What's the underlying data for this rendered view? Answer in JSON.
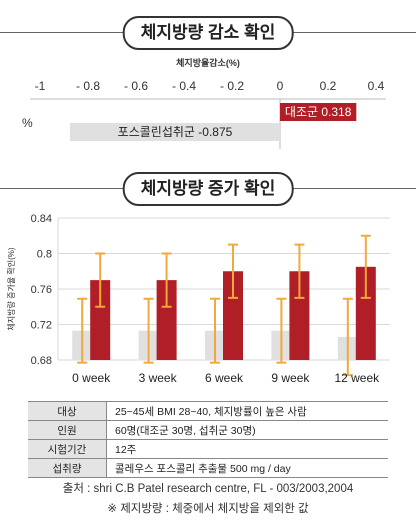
{
  "sections": {
    "title_1": "체지방량 감소 확인",
    "title_2": "체지방량 증가 확인"
  },
  "chart_data": [
    {
      "type": "bar",
      "orientation": "horizontal",
      "title": "체지방율감소(%)",
      "ylabel": "%",
      "xlim": [
        -1,
        0.4
      ],
      "xticks": [
        -1,
        -0.8,
        -0.6,
        -0.4,
        -0.2,
        0,
        0.2,
        0.4
      ],
      "xtick_labels": [
        "-1",
        "- 0.8",
        "- 0.6",
        "- 0.4",
        "- 0.2",
        "0",
        "0.2",
        "0.4"
      ],
      "bars": [
        {
          "label": "대조군 0.318",
          "value": 0.318,
          "color": "#b01e27"
        },
        {
          "label": "포스콜린섭취군 -0.875",
          "value": -0.875,
          "color": "#e0e0e0"
        }
      ]
    },
    {
      "type": "bar",
      "ylabel": "체지방량 증가율 확인(%)",
      "ylim": [
        0.68,
        0.84
      ],
      "yticks": [
        0.68,
        0.72,
        0.76,
        0.8,
        0.84
      ],
      "ytick_labels": [
        "0.68",
        "0.72",
        "0.76",
        "0.8",
        "0.84"
      ],
      "grid": true,
      "categories": [
        "0 week",
        "3 week",
        "6 week",
        "9 week",
        "12 week"
      ],
      "series": [
        {
          "values": [
            0.713,
            0.713,
            0.713,
            0.713,
            0.706
          ],
          "error": [
            0.036,
            0.036,
            0.036,
            0.036,
            0.043
          ],
          "color": "#e0e0e0"
        },
        {
          "values": [
            0.77,
            0.77,
            0.78,
            0.78,
            0.785
          ],
          "error": [
            0.03,
            0.03,
            0.03,
            0.03,
            0.035
          ],
          "color": "#b01e27"
        }
      ],
      "error_bar_color": "#f2a93b"
    }
  ],
  "info_table": [
    {
      "label": "대상",
      "value": "25~45세 BMI 28~40, 체지방률이 높은 사람"
    },
    {
      "label": "인원",
      "value": "60명(대조군 30명, 섭취군 30명)"
    },
    {
      "label": "시험기간",
      "value": "12주"
    },
    {
      "label": "섭취량",
      "value": "콜레우스 포스콜리 추출물 500 mg / day"
    }
  ],
  "footer": {
    "source": "출처 : shri C.B Patel research centre, FL - 003/2003,2004",
    "note": "※ 제지방량 : 체중에서 체지방을 제외한 값"
  }
}
